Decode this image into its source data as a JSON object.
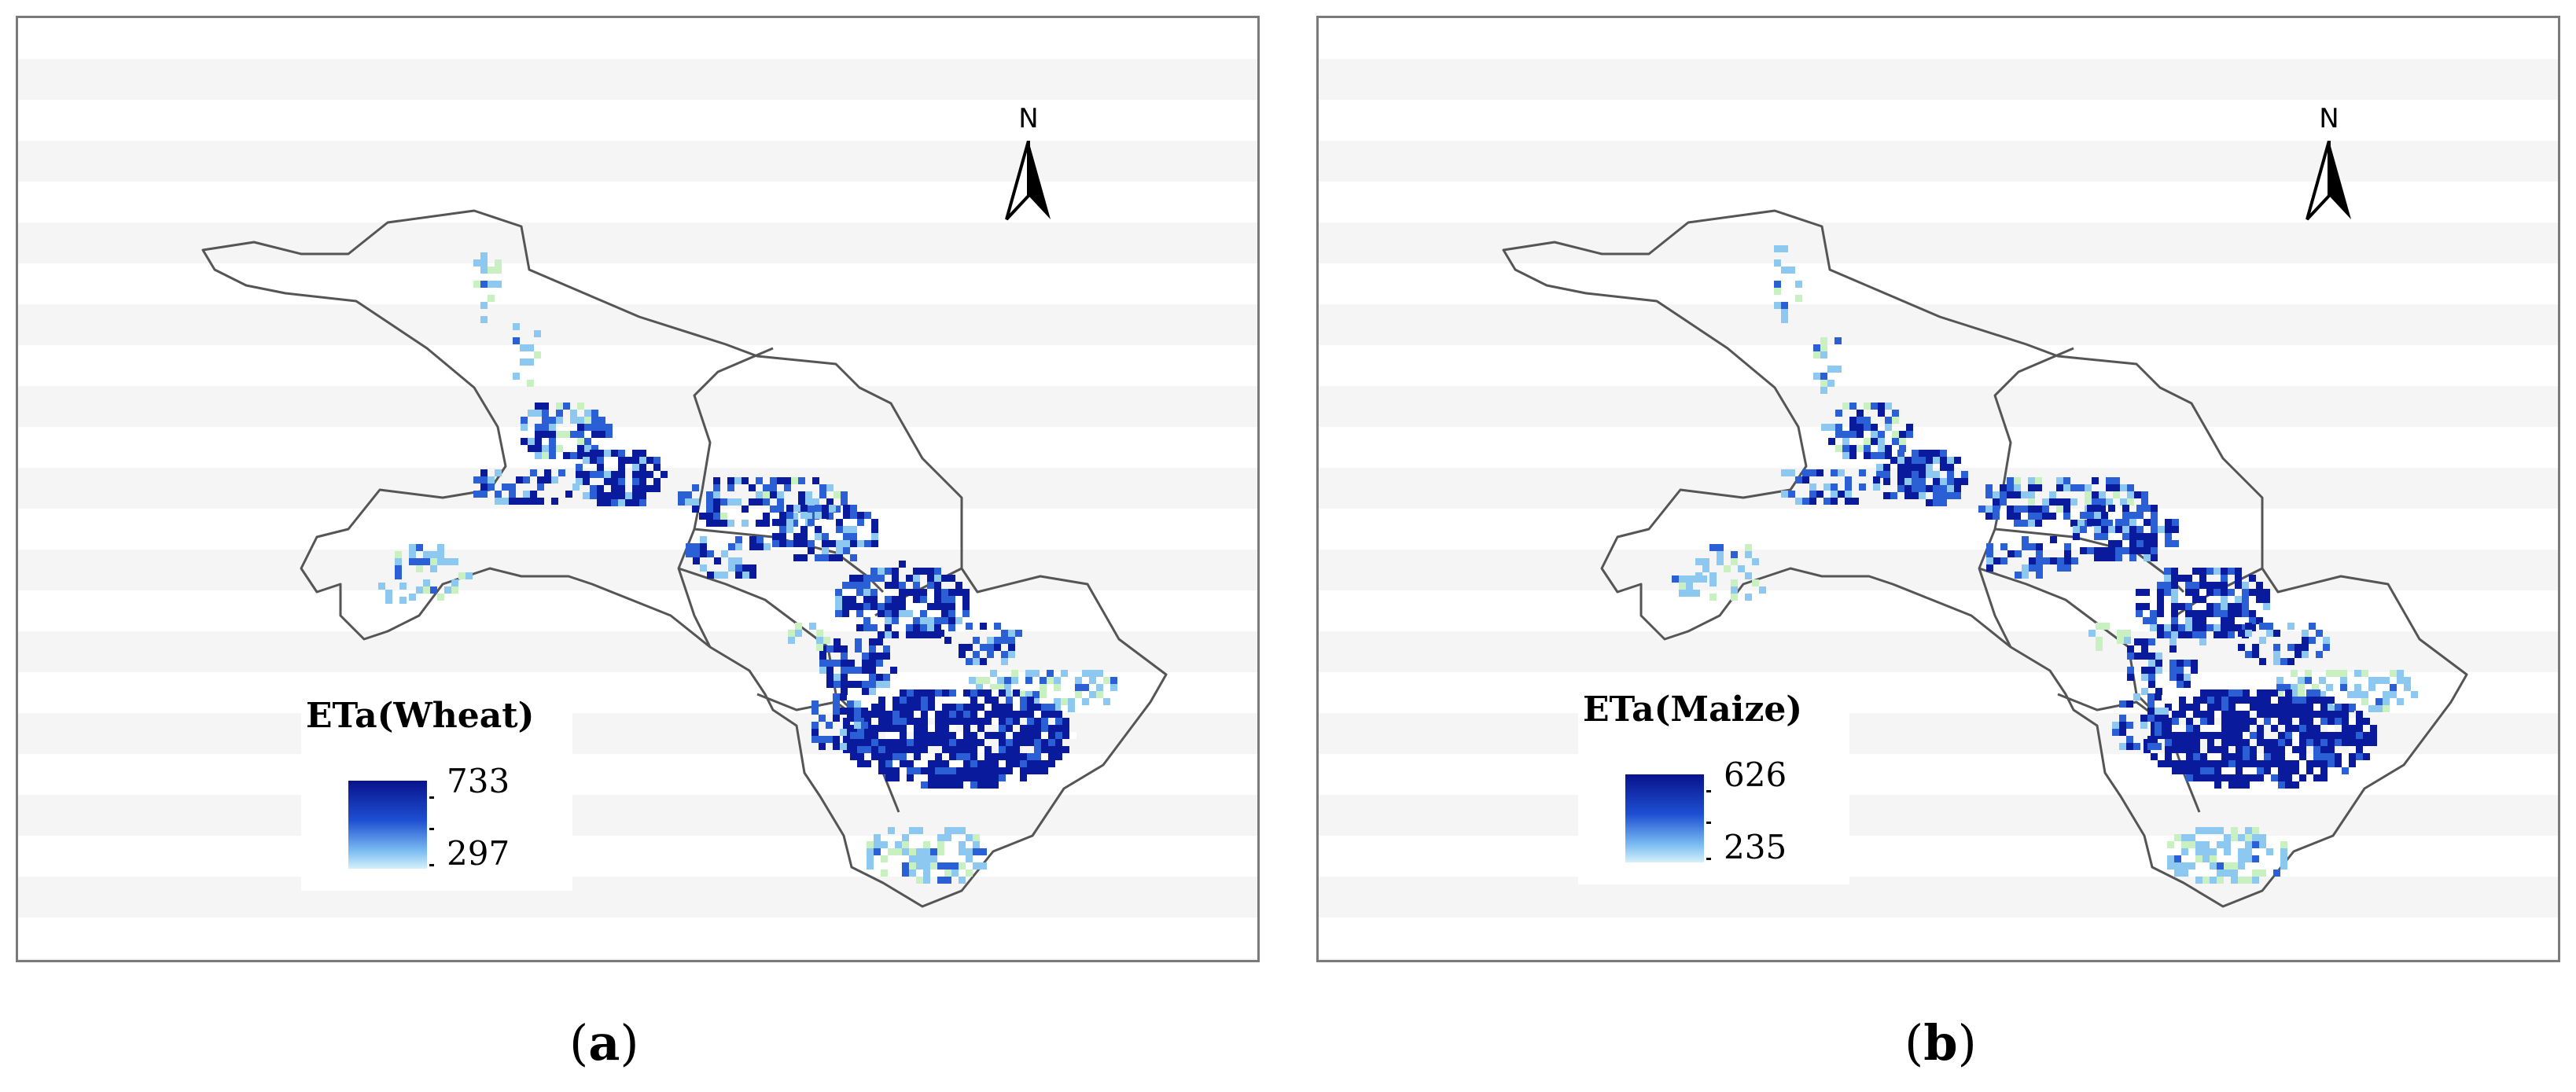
{
  "panels": [
    {
      "id": "a",
      "caption": "(a)",
      "caption_letter": "a",
      "north_label": "N",
      "legend": {
        "title": "ETa(Wheat)",
        "max": "733",
        "min": "297"
      },
      "ramp_colors": [
        "#08128c",
        "#1e4fd2",
        "#7cbdf2",
        "#d6f1fb"
      ]
    },
    {
      "id": "b",
      "caption": "(b)",
      "caption_letter": "b",
      "north_label": "N",
      "legend": {
        "title": "ETa(Maize)",
        "max": "626",
        "min": "235"
      },
      "ramp_colors": [
        "#08128c",
        "#1e4fd2",
        "#7cbdf2",
        "#d6f1fb"
      ]
    }
  ],
  "colors": {
    "dark_blue": "#0a1a9c",
    "mid_blue": "#2b5fd6",
    "light_blue": "#8cc8f0",
    "pale_green": "#c8f0c0",
    "border": "#555555"
  }
}
